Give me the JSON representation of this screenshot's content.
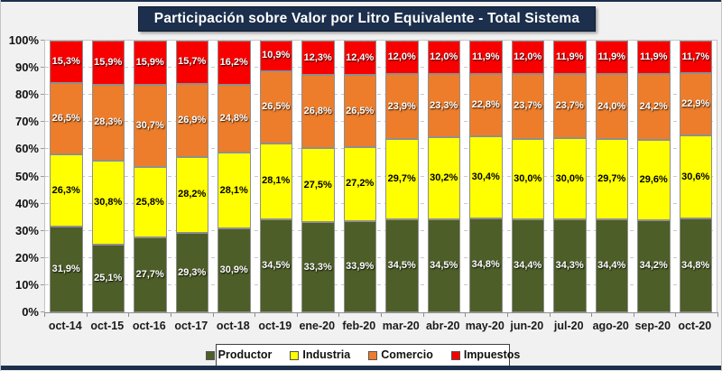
{
  "page": {
    "background": "#F1F1F1",
    "frame_color": "#1C2F4D"
  },
  "chart_data": {
    "type": "bar",
    "stacked": true,
    "stacked_100": true,
    "title": "Participación sobre Valor por Litro Equivalente - Total Sistema",
    "title_bg": "#1C2F4D",
    "title_color": "#FFFFFF",
    "categories": [
      "oct-14",
      "oct-15",
      "oct-16",
      "oct-17",
      "oct-18",
      "oct-19",
      "ene-20",
      "feb-20",
      "mar-20",
      "abr-20",
      "may-20",
      "jun-20",
      "jul-20",
      "ago-20",
      "sep-20",
      "oct-20"
    ],
    "series": [
      {
        "name": "Productor",
        "color": "#4D5E28",
        "label_color": "#FFFFFF",
        "values": [
          31.9,
          25.1,
          27.7,
          29.3,
          30.9,
          34.5,
          33.3,
          33.9,
          34.5,
          34.5,
          34.8,
          34.4,
          34.3,
          34.4,
          34.2,
          34.8
        ]
      },
      {
        "name": "Industria",
        "color": "#FFFF00",
        "label_color": "#000000",
        "values": [
          26.3,
          30.8,
          25.8,
          28.2,
          28.1,
          28.1,
          27.5,
          27.2,
          29.7,
          30.2,
          30.4,
          30.0,
          30.0,
          29.7,
          29.6,
          30.6
        ]
      },
      {
        "name": "Comercio",
        "color": "#ED7D2B",
        "label_color": "#FFFFFF",
        "values": [
          26.5,
          28.3,
          30.7,
          26.9,
          24.8,
          26.5,
          26.8,
          26.5,
          23.9,
          23.3,
          22.8,
          23.7,
          23.7,
          24.0,
          24.2,
          22.9
        ]
      },
      {
        "name": "Impuestos",
        "color": "#F90000",
        "label_color": "#FFFFFF",
        "values": [
          15.3,
          15.9,
          15.9,
          15.7,
          16.2,
          10.9,
          12.3,
          12.4,
          12.0,
          12.0,
          11.9,
          12.0,
          11.9,
          11.9,
          11.9,
          11.7
        ]
      }
    ],
    "y_axis": {
      "min": 0,
      "max": 100,
      "tick_values": [
        0,
        10,
        20,
        30,
        40,
        50,
        60,
        70,
        80,
        90,
        100
      ],
      "tick_labels": [
        "0%",
        "10%",
        "20%",
        "30%",
        "40%",
        "50%",
        "60%",
        "70%",
        "80%",
        "90%",
        "100%"
      ],
      "grid": true,
      "grid_style": "dashed"
    },
    "legend": {
      "position": "bottom",
      "items": [
        "Productor",
        "Industria",
        "Comercio",
        "Impuestos"
      ]
    },
    "value_suffix": "%",
    "decimal_separator": ","
  }
}
